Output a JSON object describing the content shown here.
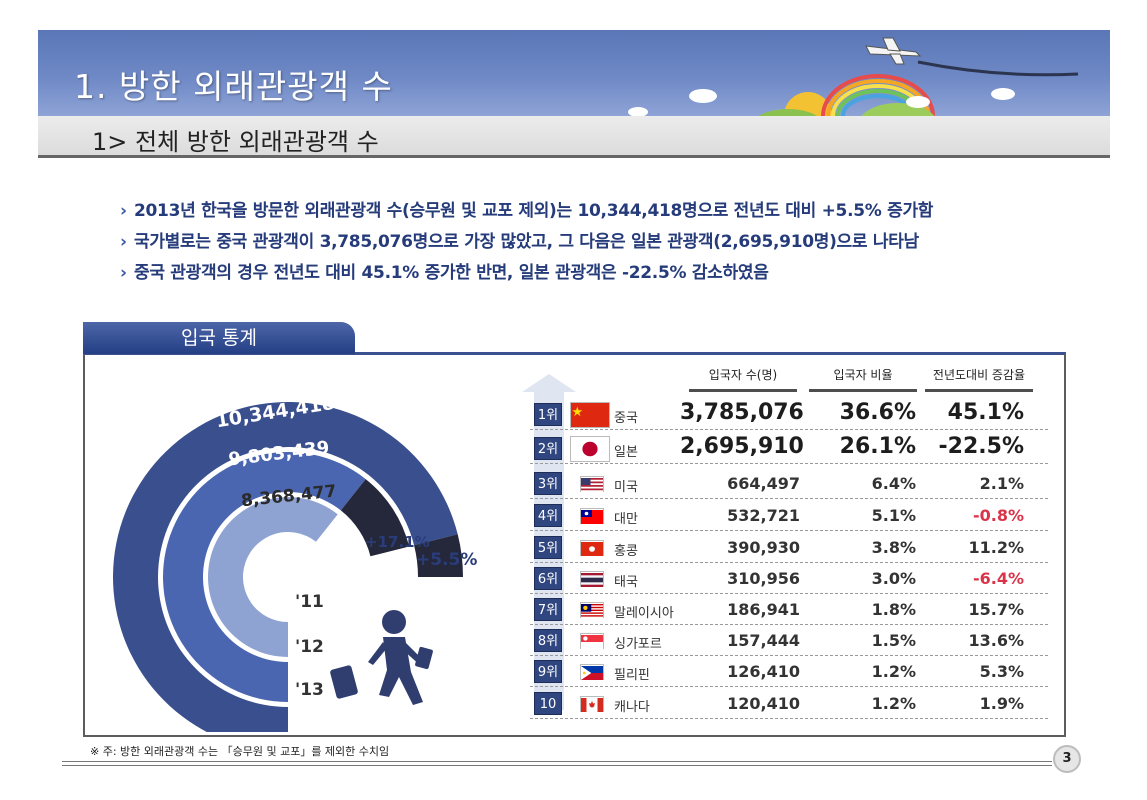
{
  "header": {
    "title": "1. 방한 외래관광객 수",
    "subtitle": "1> 전체 방한 외래관광객 수"
  },
  "bullets": [
    "2013년 한국을 방문한 외래관광객 수(승무원 및 교포 제외)는 10,344,418명으로 전년도 대비 +5.5% 증가함",
    "국가별로는 중국 관광객이 3,785,076명으로 가장 많았고, 그 다음은 일본 관광객(2,695,910명)으로 나타남",
    "중국 관광객의 경우 전년도 대비 45.1% 증가한 반면, 일본 관광객은 -22.5% 감소하였음"
  ],
  "stats": {
    "tab_label": "입국 통계",
    "totals": [
      {
        "year": "'11",
        "value_label": "8,368,477",
        "value": 8368477
      },
      {
        "year": "'12",
        "value_label": "9,803,439",
        "value": 9803439
      },
      {
        "year": "'13",
        "value_label": "10,344,418",
        "value": 10344418
      }
    ],
    "growth_12": "+17.1%",
    "growth_13": "+5.5%",
    "colors": {
      "y11": "#8fa3d3",
      "y12": "#4a66b0",
      "y13": "#3a4f8e",
      "growth": "#24283a"
    },
    "columns": [
      "입국자 수(명)",
      "입국자 비율",
      "전년도대비 증감율"
    ],
    "rows": [
      {
        "rank": "1위",
        "country": "중국",
        "flag": "china",
        "count": "3,785,076",
        "ratio": "36.6%",
        "change": "45.1%",
        "neg": false
      },
      {
        "rank": "2위",
        "country": "일본",
        "flag": "japan",
        "count": "2,695,910",
        "ratio": "26.1%",
        "change": "-22.5%",
        "neg": true
      },
      {
        "rank": "3위",
        "country": "미국",
        "flag": "usa",
        "count": "664,497",
        "ratio": "6.4%",
        "change": "2.1%",
        "neg": false
      },
      {
        "rank": "4위",
        "country": "대만",
        "flag": "taiwan",
        "count": "532,721",
        "ratio": "5.1%",
        "change": "-0.8%",
        "neg": true
      },
      {
        "rank": "5위",
        "country": "홍콩",
        "flag": "hongkong",
        "count": "390,930",
        "ratio": "3.8%",
        "change": "11.2%",
        "neg": false
      },
      {
        "rank": "6위",
        "country": "태국",
        "flag": "thailand",
        "count": "310,956",
        "ratio": "3.0%",
        "change": "-6.4%",
        "neg": true
      },
      {
        "rank": "7위",
        "country": "말레이시아",
        "flag": "malaysia",
        "count": "186,941",
        "ratio": "1.8%",
        "change": "15.7%",
        "neg": false
      },
      {
        "rank": "8위",
        "country": "싱가포르",
        "flag": "singapore",
        "count": "157,444",
        "ratio": "1.5%",
        "change": "13.6%",
        "neg": false
      },
      {
        "rank": "9위",
        "country": "필리핀",
        "flag": "philippines",
        "count": "126,410",
        "ratio": "1.2%",
        "change": "5.3%",
        "neg": false
      },
      {
        "rank": "10위",
        "country": "캐나다",
        "flag": "canada",
        "count": "120,410",
        "ratio": "1.2%",
        "change": "1.9%",
        "neg": false
      }
    ]
  },
  "footnote": "※ 주: 방한 외래관광객 수는 「승무원 및 교포」를 제외한 수치임",
  "page_number": "3"
}
